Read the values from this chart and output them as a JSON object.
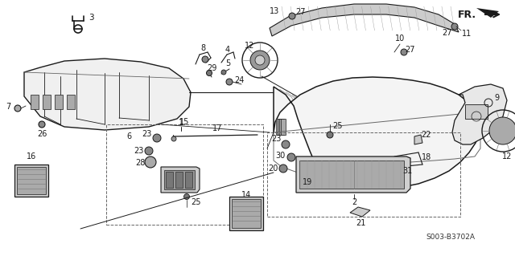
{
  "bg_color": "#ffffff",
  "line_color": "#1a1a1a",
  "diagram_code": "S003-B3702A",
  "fig_width": 6.4,
  "fig_height": 3.19,
  "dpi": 100
}
